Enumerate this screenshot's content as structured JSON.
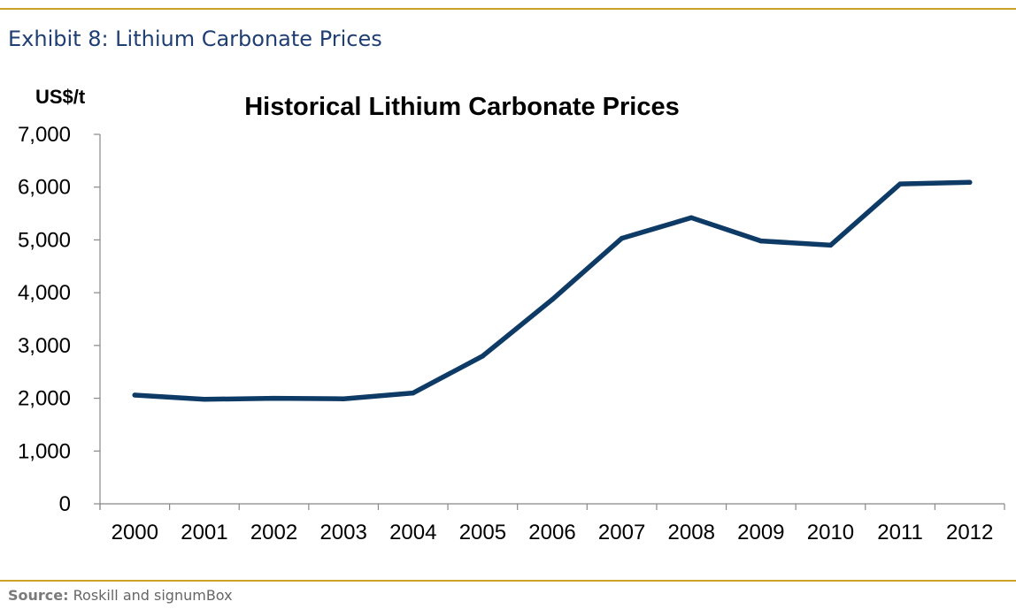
{
  "exhibit_title": "Exhibit 8: Lithium Carbonate Prices",
  "source": {
    "label": "Source:",
    "text": "Roskill and signumBox"
  },
  "colors": {
    "line": "#0e3a66",
    "rule": "#c9a227",
    "exhibit_title": "#1f3f73",
    "axis": "#888888"
  },
  "chart_data": {
    "type": "line",
    "title": "Historical Lithium Carbonate Prices",
    "ylabel": "US$/t",
    "xlabel": "",
    "ylim": [
      0,
      7000
    ],
    "yticks": [
      0,
      1000,
      2000,
      3000,
      4000,
      5000,
      6000,
      7000
    ],
    "ytick_labels": [
      "0",
      "1,000",
      "2,000",
      "3,000",
      "4,000",
      "5,000",
      "6,000",
      "7,000"
    ],
    "grid": false,
    "categories": [
      "2000",
      "2001",
      "2002",
      "2003",
      "2004",
      "2005",
      "2006",
      "2007",
      "2008",
      "2009",
      "2010",
      "2011",
      "2012"
    ],
    "series": [
      {
        "values": [
          2060,
          1980,
          2000,
          1990,
          2100,
          2800,
          3870,
          5030,
          5420,
          4980,
          4900,
          6060,
          6090
        ]
      }
    ]
  }
}
